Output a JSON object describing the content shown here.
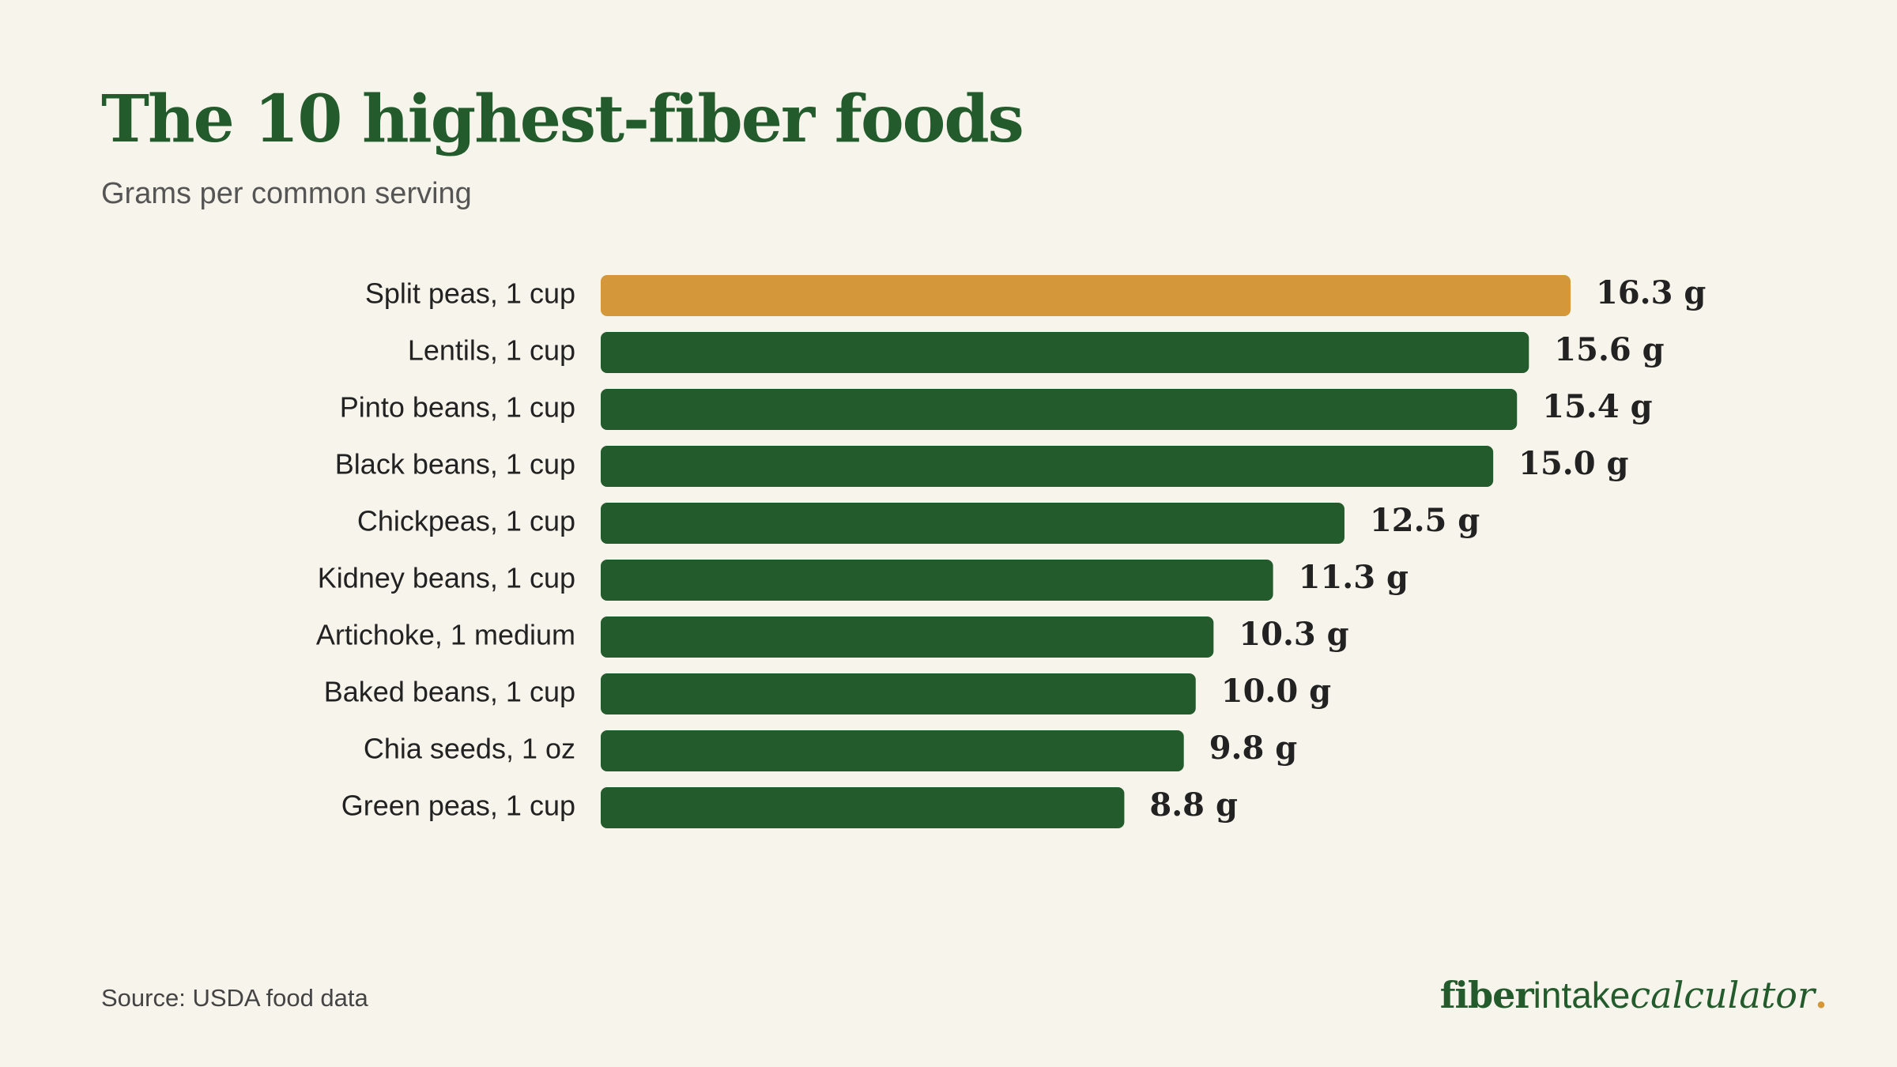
{
  "header": {
    "title": "The 10 highest-fiber foods",
    "subtitle": "Grams per common serving"
  },
  "footer": {
    "source": "Source: USDA food data",
    "brand": {
      "part1": "fiber",
      "part2": "intake",
      "part3": "calculator",
      "dot": "."
    }
  },
  "colors": {
    "background": "#f7f4ec",
    "primary_bar": "#235b2c",
    "highlight_bar": "#d4983b",
    "title": "#235b2c",
    "text": "#222222"
  },
  "chart_data": {
    "type": "bar",
    "orientation": "horizontal",
    "categories": [
      "Split peas, 1 cup",
      "Lentils, 1 cup",
      "Pinto beans, 1 cup",
      "Black beans, 1 cup",
      "Chickpeas, 1 cup",
      "Kidney beans, 1 cup",
      "Artichoke, 1 medium",
      "Baked beans, 1 cup",
      "Chia seeds, 1 oz",
      "Green peas, 1 cup"
    ],
    "values": [
      16.3,
      15.6,
      15.4,
      15.0,
      12.5,
      11.3,
      10.3,
      10.0,
      9.8,
      8.8
    ],
    "value_labels": [
      "16.3 g",
      "15.6 g",
      "15.4 g",
      "15.0 g",
      "12.5 g",
      "11.3 g",
      "10.3 g",
      "10.0 g",
      "9.8 g",
      "8.8 g"
    ],
    "highlight_index": 0,
    "title": "The 10 highest-fiber foods",
    "subtitle": "Grams per common serving",
    "unit": "g",
    "xlim": [
      0,
      16.3
    ],
    "grid": false,
    "legend": "none"
  }
}
